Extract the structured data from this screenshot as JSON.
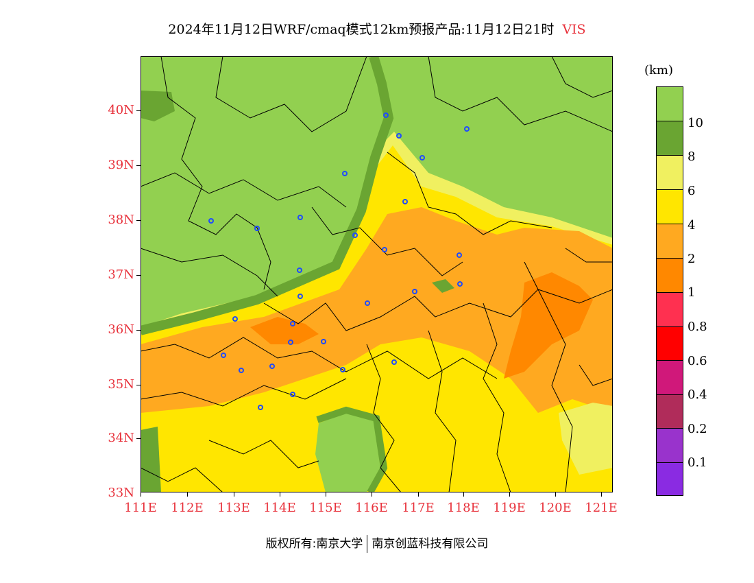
{
  "title": {
    "main": "2024年11月12日WRF/cmaq模式12km预报产品:11月12日21时",
    "variable": "VIS"
  },
  "map": {
    "lat_labels": [
      "40N",
      "39N",
      "38N",
      "37N",
      "36N",
      "35N",
      "34N",
      "33N"
    ],
    "lon_labels": [
      "111E",
      "112E",
      "113E",
      "114E",
      "115E",
      "116E",
      "117E",
      "118E",
      "119E",
      "120E",
      "121E"
    ],
    "extent": {
      "lon_min": 111,
      "lon_max": 121.4,
      "lat_min": 33,
      "lat_max": 41
    }
  },
  "legend": {
    "unit": "(km)",
    "labels": [
      "10",
      "8",
      "6",
      "4",
      "2",
      "1",
      "0.8",
      "0.6",
      "0.4",
      "0.2",
      "0.1"
    ],
    "colors": [
      "#92d050",
      "#6aa532",
      "#f0f060",
      "#ffe600",
      "#ffa920",
      "#ff8800",
      "#ff3050",
      "#ff0000",
      "#d0187a",
      "#b02c5a",
      "#9933cc",
      "#8a2be2"
    ]
  },
  "footer": {
    "copyright": "版权所有:南京大学",
    "company": "南京创蓝科技有限公司"
  }
}
